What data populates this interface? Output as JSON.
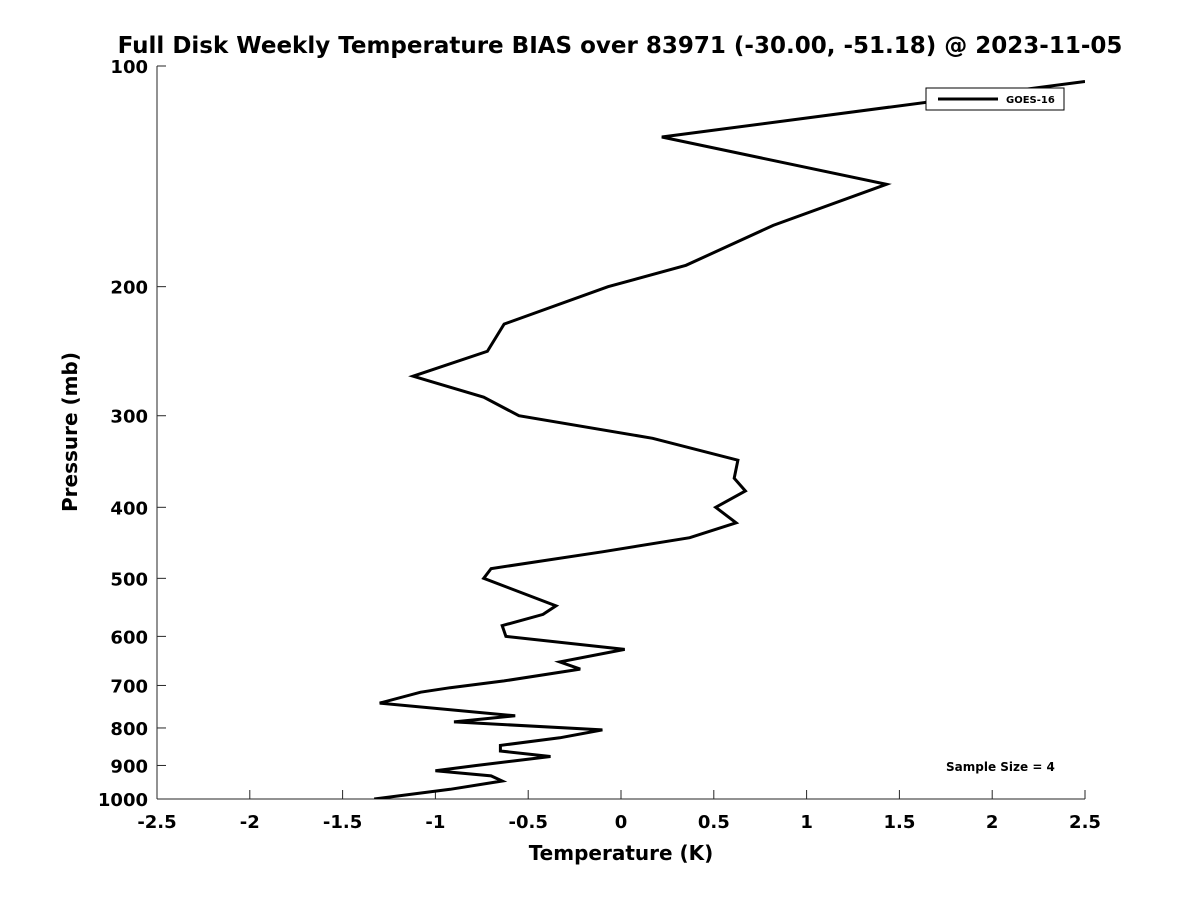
{
  "chart_data": {
    "type": "line",
    "title": "Full Disk Weekly Temperature BIAS over 83971 (-30.00, -51.18) @ 2023-11-05",
    "xlabel": "Temperature (K)",
    "ylabel": "Pressure (mb)",
    "xlim": [
      -2.5,
      2.5
    ],
    "ylim": [
      100,
      1000
    ],
    "y_scale": "log",
    "y_reversed": true,
    "grid": false,
    "legend_position": "top-right",
    "x_ticks": [
      -2.5,
      -2,
      -1.5,
      -1,
      -0.5,
      0,
      0.5,
      1,
      1.5,
      2,
      2.5
    ],
    "x_tick_labels": [
      "-2.5",
      "-2",
      "-1.5",
      "-1",
      "-0.5",
      "0",
      "0.5",
      "1",
      "1.5",
      "2",
      "2.5"
    ],
    "y_ticks": [
      100,
      200,
      300,
      400,
      500,
      600,
      700,
      800,
      900,
      1000
    ],
    "y_tick_labels": [
      "100",
      "200",
      "300",
      "400",
      "500",
      "600",
      "700",
      "800",
      "900",
      "1000"
    ],
    "annotation": "Sample Size = 4",
    "series": [
      {
        "name": "GOES-16",
        "color": "#000000",
        "points": [
          {
            "x": 2.5,
            "y": 105
          },
          {
            "x": 0.22,
            "y": 125
          },
          {
            "x": 1.43,
            "y": 145
          },
          {
            "x": 0.82,
            "y": 165
          },
          {
            "x": 0.35,
            "y": 187
          },
          {
            "x": -0.07,
            "y": 200
          },
          {
            "x": -0.63,
            "y": 225
          },
          {
            "x": -0.72,
            "y": 245
          },
          {
            "x": -1.12,
            "y": 265
          },
          {
            "x": -0.74,
            "y": 283
          },
          {
            "x": -0.55,
            "y": 300
          },
          {
            "x": 0.17,
            "y": 322
          },
          {
            "x": 0.63,
            "y": 345
          },
          {
            "x": 0.61,
            "y": 365
          },
          {
            "x": 0.67,
            "y": 380
          },
          {
            "x": 0.51,
            "y": 400
          },
          {
            "x": 0.62,
            "y": 420
          },
          {
            "x": 0.37,
            "y": 440
          },
          {
            "x": -0.1,
            "y": 460
          },
          {
            "x": -0.7,
            "y": 485
          },
          {
            "x": -0.74,
            "y": 500
          },
          {
            "x": -0.35,
            "y": 545
          },
          {
            "x": -0.42,
            "y": 560
          },
          {
            "x": -0.64,
            "y": 580
          },
          {
            "x": -0.62,
            "y": 600
          },
          {
            "x": 0.02,
            "y": 625
          },
          {
            "x": -0.33,
            "y": 650
          },
          {
            "x": -0.22,
            "y": 665
          },
          {
            "x": -0.63,
            "y": 690
          },
          {
            "x": -0.92,
            "y": 705
          },
          {
            "x": -1.08,
            "y": 715
          },
          {
            "x": -1.3,
            "y": 740
          },
          {
            "x": -0.57,
            "y": 770
          },
          {
            "x": -0.9,
            "y": 785
          },
          {
            "x": -0.1,
            "y": 805
          },
          {
            "x": -0.33,
            "y": 825
          },
          {
            "x": -0.65,
            "y": 845
          },
          {
            "x": -0.65,
            "y": 860
          },
          {
            "x": -0.38,
            "y": 875
          },
          {
            "x": -0.78,
            "y": 900
          },
          {
            "x": -1.0,
            "y": 915
          },
          {
            "x": -0.7,
            "y": 930
          },
          {
            "x": -0.64,
            "y": 945
          },
          {
            "x": -0.92,
            "y": 970
          },
          {
            "x": -1.33,
            "y": 1000
          }
        ]
      }
    ]
  }
}
